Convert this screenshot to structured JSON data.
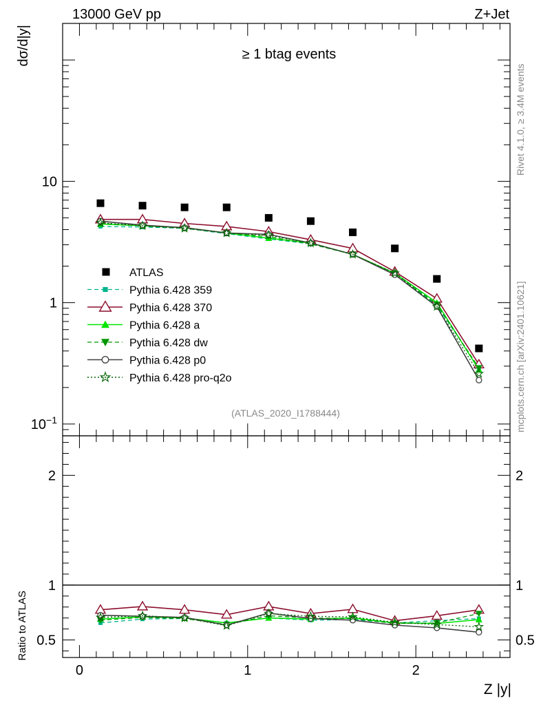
{
  "header": {
    "left": "13000 GeV pp",
    "right": "Z+Jet"
  },
  "side_text": {
    "rivet": "Rivet 4.1.0, ≥ 3.4M events",
    "mcplots": "mcplots.cern.ch [arXiv:2401.10621]"
  },
  "colors": {
    "atlas": "#000000",
    "p359": "#00b48c",
    "p370": "#8c0f2d",
    "pa": "#00e600",
    "pdw": "#009600",
    "pp0": "#404040",
    "pq2o": "#006400"
  },
  "chart_data": [
    {
      "type": "scatter",
      "title": "≥ 1 btag events",
      "ylabel": "dσ/d|y|",
      "xlabel": "Z |y|",
      "yscale": "log",
      "ylim": [
        0.08,
        200
      ],
      "xlim": [
        -0.1,
        2.56
      ],
      "x_ticks": [
        "0",
        "1",
        "2"
      ],
      "y_ticks": [
        "10^-1",
        "1",
        "10"
      ],
      "watermark": "(ATLAS_2020_I1788444)",
      "x": [
        0.125,
        0.375,
        0.625,
        0.875,
        1.125,
        1.375,
        1.625,
        1.875,
        2.125,
        2.375
      ],
      "series": [
        {
          "name": "ATLAS",
          "key": "atlas",
          "values": [
            6.6,
            6.3,
            6.1,
            6.1,
            5.0,
            4.7,
            3.8,
            2.8,
            1.57,
            0.42
          ]
        },
        {
          "name": "Pythia 6.428 359",
          "key": "p359",
          "values": [
            4.25,
            4.2,
            4.1,
            3.7,
            3.35,
            3.05,
            2.5,
            1.75,
            0.95,
            0.29
          ]
        },
        {
          "name": "Pythia 6.428 370",
          "key": "p370",
          "values": [
            4.85,
            4.85,
            4.5,
            4.25,
            3.85,
            3.3,
            2.8,
            1.8,
            1.08,
            0.31
          ]
        },
        {
          "name": "Pythia 6.428 a",
          "key": "pa",
          "values": [
            4.45,
            4.3,
            4.15,
            3.75,
            3.4,
            3.1,
            2.5,
            1.75,
            1.0,
            0.28
          ]
        },
        {
          "name": "Pythia 6.428 dw",
          "key": "pdw",
          "values": [
            4.5,
            4.3,
            4.1,
            3.75,
            3.5,
            3.05,
            2.5,
            1.75,
            0.97,
            0.29
          ]
        },
        {
          "name": "Pythia 6.428 p0",
          "key": "pp0",
          "values": [
            4.7,
            4.35,
            4.15,
            3.75,
            3.65,
            3.1,
            2.5,
            1.7,
            0.93,
            0.23
          ]
        },
        {
          "name": "Pythia 6.428 pro-q2o",
          "key": "pq2o",
          "values": [
            4.55,
            4.3,
            4.1,
            3.75,
            3.6,
            3.1,
            2.5,
            1.75,
            0.93,
            0.26
          ]
        }
      ]
    },
    {
      "type": "line",
      "ylabel": "Ratio to ATLAS",
      "xlabel": "Z |y|",
      "ylim": [
        0.34,
        2.36
      ],
      "y_ticks": [
        "0.5",
        "1",
        "2"
      ],
      "x": [
        0.125,
        0.375,
        0.625,
        0.875,
        1.125,
        1.375,
        1.625,
        1.875,
        2.125,
        2.375
      ],
      "series": [
        {
          "name": "Pythia 6.428 359",
          "key": "p359",
          "values": [
            0.655,
            0.69,
            0.695,
            0.655,
            0.7,
            0.68,
            0.685,
            0.655,
            0.675,
            0.695
          ]
        },
        {
          "name": "Pythia 6.428 370",
          "key": "p370",
          "values": [
            0.775,
            0.805,
            0.775,
            0.73,
            0.805,
            0.74,
            0.78,
            0.675,
            0.72,
            0.775
          ]
        },
        {
          "name": "Pythia 6.428 a",
          "key": "pa",
          "values": [
            0.69,
            0.71,
            0.7,
            0.655,
            0.7,
            0.69,
            0.7,
            0.655,
            0.65,
            0.685
          ]
        },
        {
          "name": "Pythia 6.428 dw",
          "key": "pdw",
          "values": [
            0.68,
            0.705,
            0.695,
            0.64,
            0.72,
            0.7,
            0.695,
            0.65,
            0.655,
            0.74
          ]
        },
        {
          "name": "Pythia 6.428 p0",
          "key": "pp0",
          "values": [
            0.725,
            0.715,
            0.705,
            0.635,
            0.745,
            0.695,
            0.68,
            0.635,
            0.61,
            0.57
          ]
        },
        {
          "name": "Pythia 6.428 pro-q2o",
          "key": "pq2o",
          "values": [
            0.705,
            0.72,
            0.7,
            0.63,
            0.74,
            0.715,
            0.71,
            0.66,
            0.64,
            0.62
          ]
        }
      ]
    }
  ]
}
